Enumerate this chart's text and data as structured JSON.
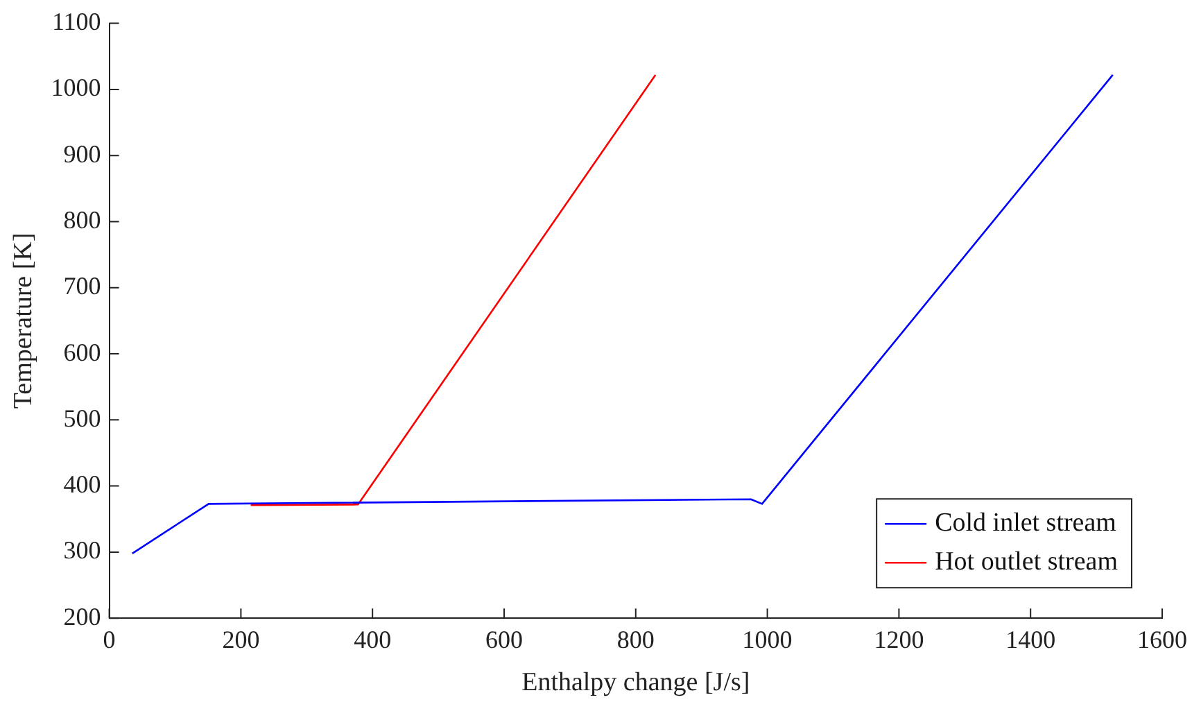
{
  "chart_data": {
    "type": "line",
    "xlabel": "Enthalpy change [J/s]",
    "ylabel": "Temperature [K]",
    "xlim": [
      0,
      1600
    ],
    "xticks": [
      0,
      200,
      400,
      600,
      800,
      1000,
      1200,
      1400,
      1600
    ],
    "ylim": [
      200,
      1100
    ],
    "yticks": [
      200,
      300,
      400,
      500,
      600,
      700,
      800,
      900,
      1000,
      1100
    ],
    "grid": false,
    "legend": "bottom right",
    "marker": "none",
    "line_style": "solid",
    "series": [
      {
        "name": "Cold inlet stream",
        "color": "#0000ff",
        "x": [
          35,
          151,
          975,
          992,
          1525
        ],
        "values": [
          298,
          373,
          380,
          373,
          1022
        ]
      },
      {
        "name": "Hot outlet stream",
        "color": "#ff0000",
        "x": [
          215,
          378,
          830
        ],
        "values": [
          371,
          372,
          1022
        ]
      }
    ]
  }
}
